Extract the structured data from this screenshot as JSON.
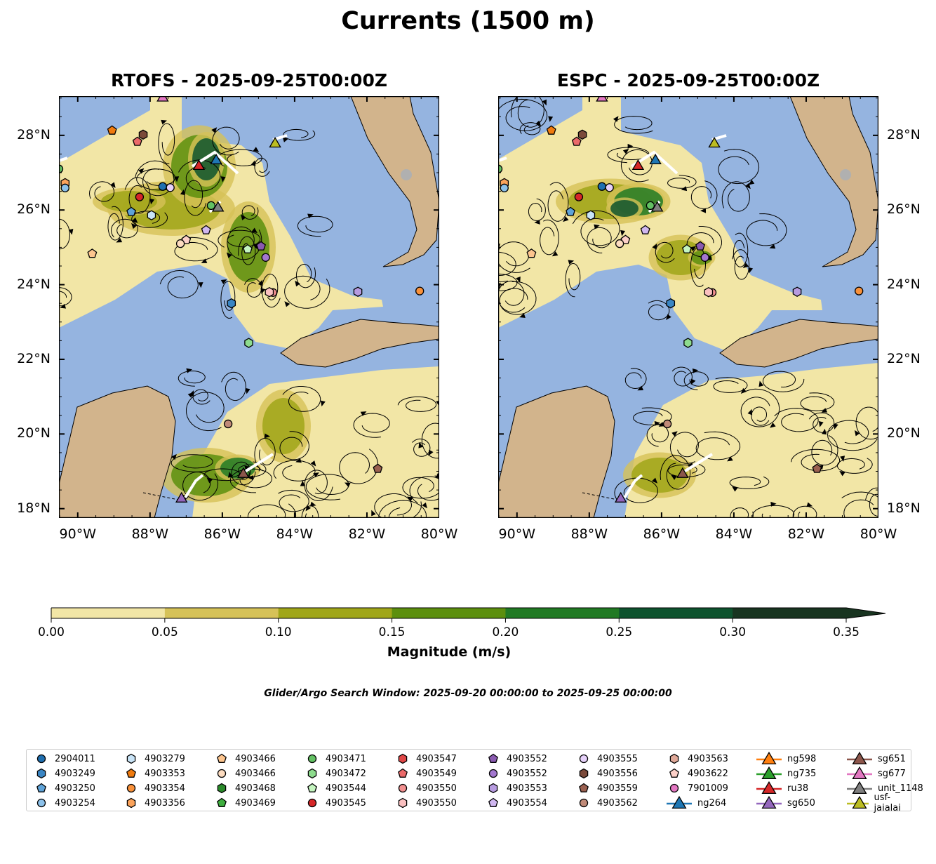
{
  "title": "Currents (1500 m)",
  "panels": [
    {
      "title": "RTOFS - 2025-09-25T00:00Z",
      "model": "RTOFS"
    },
    {
      "title": "ESPC - 2025-09-25T00:00Z",
      "model": "ESPC"
    }
  ],
  "axes": {
    "lon_labels": [
      "90°W",
      "88°W",
      "86°W",
      "84°W",
      "82°W",
      "80°W"
    ],
    "lat_labels": [
      "28°N",
      "26°N",
      "24°N",
      "22°N",
      "20°N",
      "18°N"
    ],
    "lon_range": [
      -90.52,
      -80
    ],
    "lat_range": [
      17.75,
      29.05
    ]
  },
  "colorbar": {
    "label": "Magnitude (m/s)",
    "ticks": [
      "0.00",
      "0.05",
      "0.10",
      "0.15",
      "0.20",
      "0.25",
      "0.30",
      "0.35"
    ],
    "colors": [
      "#f2e6a6",
      "#d6c258",
      "#a0a619",
      "#5c8f0e",
      "#217a24",
      "#0e532e",
      "#183420"
    ],
    "extend": "max"
  },
  "search_window": "Glider/Argo Search Window: 2025-09-20 00:00:00 to 2025-09-25 00:00:00",
  "colors": {
    "ocean": "#95b4e0",
    "land": "#d2b48c",
    "track": "#ffffff"
  },
  "legend": [
    {
      "label": "2904011",
      "shape": "circle",
      "color": "#1f6fb0"
    },
    {
      "label": "4903249",
      "shape": "hexagon",
      "color": "#3a86c4"
    },
    {
      "label": "4903250",
      "shape": "pentagon",
      "color": "#5fa3d8"
    },
    {
      "label": "4903254",
      "shape": "circle",
      "color": "#8cc1ea"
    },
    {
      "label": "4903279",
      "shape": "hexagon",
      "color": "#c9e4f7"
    },
    {
      "label": "4903353",
      "shape": "pentagon",
      "color": "#f07b0e"
    },
    {
      "label": "4903354",
      "shape": "circle",
      "color": "#f9913a"
    },
    {
      "label": "4903356",
      "shape": "hexagon",
      "color": "#fba35b"
    },
    {
      "label": "4903466",
      "shape": "pentagon",
      "color": "#fdc58e"
    },
    {
      "label": "4903466",
      "shape": "circle",
      "color": "#fddcc0"
    },
    {
      "label": "4903468",
      "shape": "hexagon",
      "color": "#2a8a2a"
    },
    {
      "label": "4903469",
      "shape": "pentagon",
      "color": "#3fae3f"
    },
    {
      "label": "4903471",
      "shape": "circle",
      "color": "#63c163"
    },
    {
      "label": "4903472",
      "shape": "hexagon",
      "color": "#8edc8e"
    },
    {
      "label": "4903544",
      "shape": "pentagon",
      "color": "#c5f5c0"
    },
    {
      "label": "4903545",
      "shape": "circle",
      "color": "#d62728"
    },
    {
      "label": "4903547",
      "shape": "hexagon",
      "color": "#e04747"
    },
    {
      "label": "4903549",
      "shape": "pentagon",
      "color": "#eb6a6a"
    },
    {
      "label": "4903550",
      "shape": "circle",
      "color": "#f29090"
    },
    {
      "label": "4903550",
      "shape": "hexagon",
      "color": "#fac0c0"
    },
    {
      "label": "4903552",
      "shape": "pentagon",
      "color": "#8a5ab0"
    },
    {
      "label": "4903552",
      "shape": "circle",
      "color": "#a377cf"
    },
    {
      "label": "4903553",
      "shape": "hexagon",
      "color": "#b79be0"
    },
    {
      "label": "4903554",
      "shape": "pentagon",
      "color": "#d0b7f0"
    },
    {
      "label": "4903555",
      "shape": "circle",
      "color": "#e6d1fa"
    },
    {
      "label": "4903556",
      "shape": "hexagon",
      "color": "#7b4a3a"
    },
    {
      "label": "4903559",
      "shape": "pentagon",
      "color": "#9a6050"
    },
    {
      "label": "4903562",
      "shape": "circle",
      "color": "#c08a78"
    },
    {
      "label": "4903563",
      "shape": "hexagon",
      "color": "#dfa898"
    },
    {
      "label": "4903622",
      "shape": "pentagon",
      "color": "#fcd0c8"
    },
    {
      "label": "7901009",
      "shape": "circle",
      "color": "#e377c2"
    },
    {
      "label": "ng264",
      "shape": "triangle",
      "color": "#1f77b4"
    },
    {
      "label": "ng598",
      "shape": "triangle",
      "color": "#ff7f0e"
    },
    {
      "label": "ng735",
      "shape": "triangle",
      "color": "#2ca02c"
    },
    {
      "label": "ru38",
      "shape": "triangle",
      "color": "#d62728"
    },
    {
      "label": "sg650",
      "shape": "triangle",
      "color": "#9467bd"
    },
    {
      "label": "sg651",
      "shape": "triangle",
      "color": "#8c564b"
    },
    {
      "label": "sg677",
      "shape": "triangle",
      "color": "#e377c2"
    },
    {
      "label": "unit_1148",
      "shape": "triangle",
      "color": "#7f7f7f"
    },
    {
      "label": "usf-jaialai",
      "shape": "triangle",
      "color": "#bcbd22"
    }
  ],
  "observations": [
    {
      "i": 37,
      "lon": -87.65,
      "lat": 29.0
    },
    {
      "i": 5,
      "lon": -89.05,
      "lat": 28.13
    },
    {
      "i": 25,
      "lon": -88.19,
      "lat": 28.02
    },
    {
      "i": 17,
      "lon": -88.35,
      "lat": 27.83
    },
    {
      "i": 39,
      "lon": -84.54,
      "lat": 27.77
    },
    {
      "i": 12,
      "lon": -90.52,
      "lat": 27.1
    },
    {
      "i": 7,
      "lon": -90.35,
      "lat": 26.72
    },
    {
      "i": 3,
      "lon": -90.35,
      "lat": 26.59
    },
    {
      "i": 0,
      "lon": -87.65,
      "lat": 26.63
    },
    {
      "i": 24,
      "lon": -87.44,
      "lat": 26.6
    },
    {
      "i": 15,
      "lon": -88.29,
      "lat": 26.35
    },
    {
      "i": 12,
      "lon": -86.31,
      "lat": 26.12
    },
    {
      "i": 2,
      "lon": -88.52,
      "lat": 25.95
    },
    {
      "i": 4,
      "lon": -87.96,
      "lat": 25.86
    },
    {
      "i": 23,
      "lon": -86.45,
      "lat": 25.46
    },
    {
      "i": 29,
      "lon": -87.0,
      "lat": 25.2
    },
    {
      "i": 9,
      "lon": -87.16,
      "lat": 25.1
    },
    {
      "i": 8,
      "lon": -89.6,
      "lat": 24.83
    },
    {
      "i": 14,
      "lon": -85.3,
      "lat": 24.95
    },
    {
      "i": 20,
      "lon": -84.93,
      "lat": 25.03
    },
    {
      "i": 21,
      "lon": -84.8,
      "lat": 24.73
    },
    {
      "i": 22,
      "lon": -82.25,
      "lat": 23.81
    },
    {
      "i": 6,
      "lon": -80.54,
      "lat": 23.83
    },
    {
      "i": 18,
      "lon": -84.6,
      "lat": 23.79
    },
    {
      "i": 19,
      "lon": -84.7,
      "lat": 23.8
    },
    {
      "i": 1,
      "lon": -85.75,
      "lat": 23.5
    },
    {
      "i": 13,
      "lon": -85.27,
      "lat": 22.44
    },
    {
      "i": 27,
      "lon": -85.84,
      "lat": 20.27
    },
    {
      "i": 26,
      "lon": -81.7,
      "lat": 19.07
    },
    {
      "i": 34,
      "lon": -86.65,
      "lat": 27.17
    },
    {
      "i": 31,
      "lon": -86.17,
      "lat": 27.32
    },
    {
      "i": 38,
      "lon": -86.12,
      "lat": 26.05
    },
    {
      "i": 36,
      "lon": -85.42,
      "lat": 18.92
    },
    {
      "i": 35,
      "lon": -87.13,
      "lat": 18.26
    }
  ]
}
